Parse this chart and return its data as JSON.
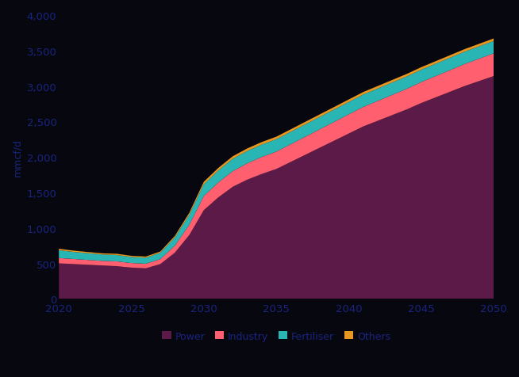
{
  "years": [
    2020,
    2021,
    2022,
    2023,
    2024,
    2025,
    2026,
    2027,
    2028,
    2029,
    2030,
    2031,
    2032,
    2033,
    2034,
    2035,
    2036,
    2037,
    2038,
    2039,
    2040,
    2041,
    2042,
    2043,
    2044,
    2045,
    2046,
    2047,
    2048,
    2049,
    2050
  ],
  "power": [
    500,
    490,
    480,
    470,
    460,
    440,
    430,
    490,
    650,
    900,
    1250,
    1430,
    1580,
    1680,
    1760,
    1830,
    1930,
    2030,
    2130,
    2230,
    2330,
    2430,
    2510,
    2590,
    2670,
    2760,
    2840,
    2920,
    3000,
    3070,
    3140
  ],
  "industry": [
    75,
    72,
    68,
    65,
    68,
    65,
    65,
    70,
    100,
    145,
    200,
    210,
    220,
    230,
    240,
    245,
    250,
    255,
    260,
    265,
    270,
    275,
    280,
    285,
    290,
    295,
    300,
    305,
    310,
    315,
    320
  ],
  "fertiliser": [
    110,
    100,
    95,
    90,
    90,
    85,
    85,
    90,
    115,
    140,
    165,
    170,
    175,
    175,
    175,
    175,
    175,
    175,
    175,
    175,
    175,
    175,
    175,
    175,
    175,
    175,
    175,
    175,
    175,
    175,
    175
  ],
  "others": [
    20,
    18,
    17,
    16,
    17,
    16,
    16,
    17,
    22,
    28,
    35,
    35,
    35,
    35,
    35,
    35,
    35,
    35,
    35,
    35,
    35,
    35,
    35,
    35,
    35,
    35,
    35,
    35,
    35,
    35,
    35
  ],
  "colors": {
    "power": "#5b1a47",
    "industry": "#ff5f6e",
    "fertiliser": "#2ab5b5",
    "others": "#e89820"
  },
  "labels": [
    "Power",
    "Industry",
    "Fertiliser",
    "Others"
  ],
  "ylabel": "mmcf/d",
  "ylim": [
    0,
    4000
  ],
  "yticks": [
    0,
    500,
    1000,
    1500,
    2000,
    2500,
    3000,
    3500,
    4000
  ],
  "xticks": [
    2020,
    2025,
    2030,
    2035,
    2040,
    2045,
    2050
  ],
  "background_color": "#07080f",
  "axes_bg_color": "#07080f",
  "tick_color": "#1a237e",
  "label_color": "#1a237e",
  "legend_text_color": "#1a237e",
  "figsize": [
    6.54,
    4.77
  ],
  "dpi": 100
}
